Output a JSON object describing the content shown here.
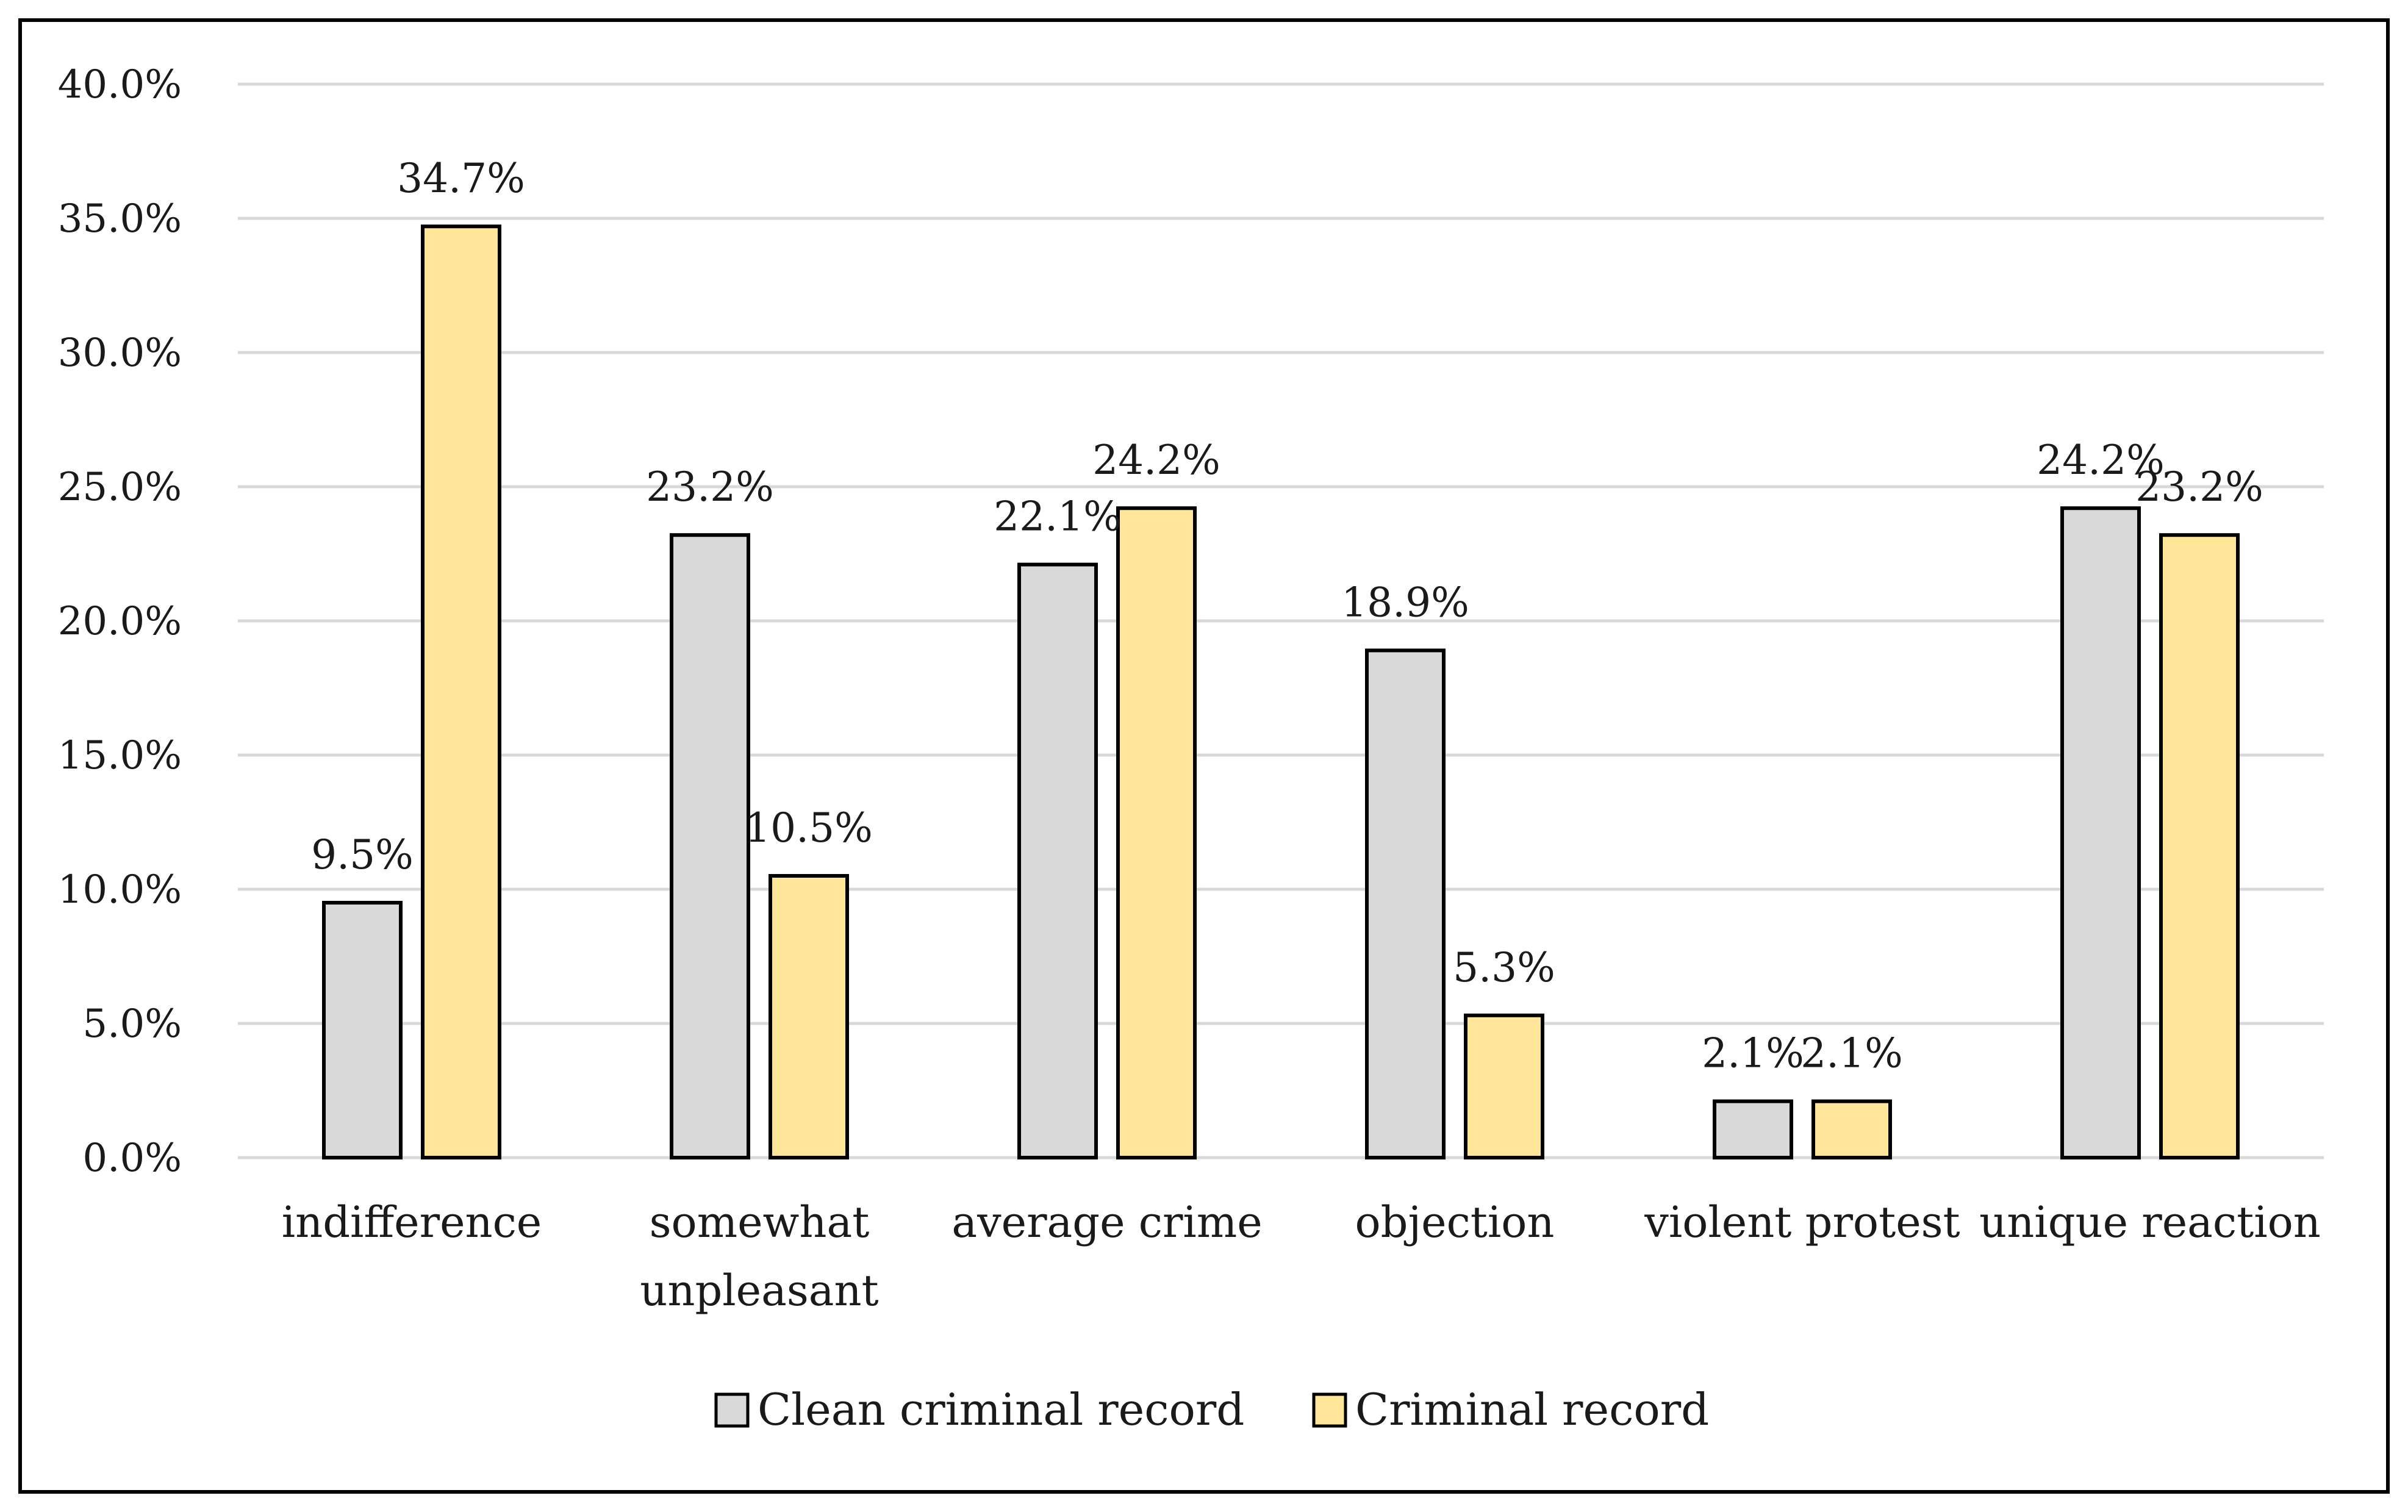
{
  "chart_data": {
    "type": "bar",
    "title": "",
    "xlabel": "",
    "ylabel": "",
    "ylim": [
      0,
      40
    ],
    "y_ticks": [
      0,
      5,
      10,
      15,
      20,
      25,
      30,
      35,
      40
    ],
    "y_tick_labels": [
      "0.0%",
      "5.0%",
      "10.0%",
      "15.0%",
      "20.0%",
      "25.0%",
      "30.0%",
      "35.0%",
      "40.0%"
    ],
    "grid": true,
    "legend_position": "bottom",
    "categories": [
      [
        "indifference"
      ],
      [
        "somewhat",
        "unpleasant"
      ],
      [
        "average crime"
      ],
      [
        "objection"
      ],
      [
        "violent protest"
      ],
      [
        "unique reaction"
      ]
    ],
    "series": [
      {
        "name": "Clean criminal record",
        "color": "#d9d9d9",
        "values": [
          9.5,
          23.2,
          22.1,
          18.9,
          2.1,
          24.2
        ],
        "labels": [
          "9.5%",
          "23.2%",
          "22.1%",
          "18.9%",
          "2.1%",
          "24.2%"
        ]
      },
      {
        "name": "Criminal record",
        "color": "#ffe699",
        "values": [
          34.7,
          10.5,
          24.2,
          5.3,
          2.1,
          23.2
        ],
        "labels": [
          "34.7%",
          "10.5%",
          "24.2%",
          "5.3%",
          "2.1%",
          "23.2%"
        ]
      }
    ],
    "colors": {
      "grid": "#d9d9d9",
      "bar_stroke": "#000000",
      "frame": "#000000"
    }
  }
}
